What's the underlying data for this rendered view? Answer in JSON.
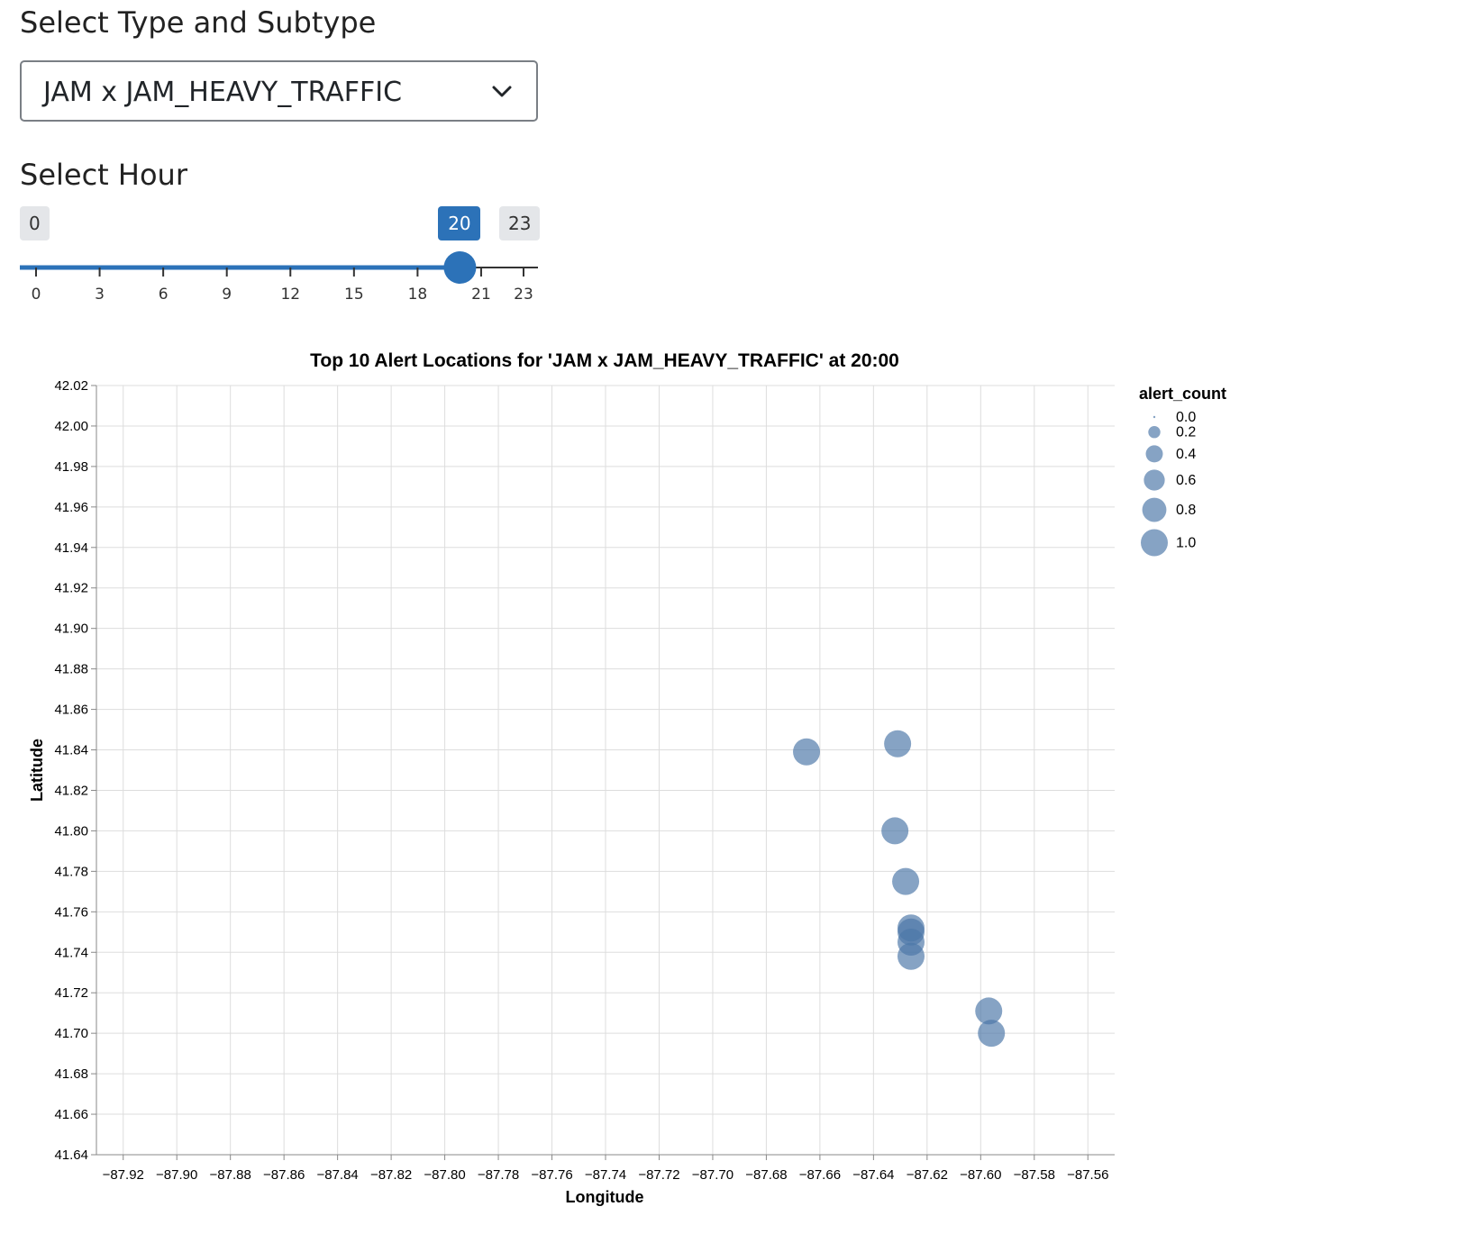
{
  "controls": {
    "type_label": "Select Type and Subtype",
    "type_value": "JAM x JAM_HEAVY_TRAFFIC",
    "hour_label": "Select Hour",
    "hour_min": "0",
    "hour_max": "23",
    "hour_value": "20",
    "hour_ticks": [
      "0",
      "3",
      "6",
      "9",
      "12",
      "15",
      "18",
      "21",
      "23"
    ]
  },
  "colors": {
    "accent": "#2c72b8",
    "point": "#4c78a8",
    "grid": "#dddddd"
  },
  "icons": {
    "dropdown": "chevron-down-icon"
  },
  "chart_data": {
    "type": "scatter",
    "title": "Top 10 Alert Locations for 'JAM x JAM_HEAVY_TRAFFIC' at 20:00",
    "xlabel": "Longitude",
    "ylabel": "Latitude",
    "xlim": [
      -87.93,
      -87.55
    ],
    "ylim": [
      41.64,
      42.02
    ],
    "xticks": [
      -87.92,
      -87.9,
      -87.88,
      -87.86,
      -87.84,
      -87.82,
      -87.8,
      -87.78,
      -87.76,
      -87.74,
      -87.72,
      -87.7,
      -87.68,
      -87.66,
      -87.64,
      -87.62,
      -87.6,
      -87.58,
      -87.56
    ],
    "xtick_labels": [
      "−87.92",
      "−87.90",
      "−87.88",
      "−87.86",
      "−87.84",
      "−87.82",
      "−87.80",
      "−87.78",
      "−87.76",
      "−87.74",
      "−87.72",
      "−87.70",
      "−87.68",
      "−87.66",
      "−87.64",
      "−87.62",
      "−87.60",
      "−87.58",
      "−87.56"
    ],
    "yticks": [
      41.64,
      41.66,
      41.68,
      41.7,
      41.72,
      41.74,
      41.76,
      41.78,
      41.8,
      41.82,
      41.84,
      41.86,
      41.88,
      41.9,
      41.92,
      41.94,
      41.96,
      41.98,
      42.0,
      42.02
    ],
    "ytick_labels": [
      "41.64",
      "41.66",
      "41.68",
      "41.70",
      "41.72",
      "41.74",
      "41.76",
      "41.78",
      "41.80",
      "41.82",
      "41.84",
      "41.86",
      "41.88",
      "41.90",
      "41.92",
      "41.94",
      "41.96",
      "41.98",
      "42.00",
      "42.02"
    ],
    "grid": true,
    "legend_position": "right",
    "size_legend": {
      "title": "alert_count",
      "values": [
        0.0,
        0.2,
        0.4,
        0.6,
        0.8,
        1.0
      ],
      "labels": [
        "0.0",
        "0.2",
        "0.4",
        "0.6",
        "0.8",
        "1.0"
      ]
    },
    "points": [
      {
        "x": -87.665,
        "y": 41.839,
        "alert_count": 1
      },
      {
        "x": -87.631,
        "y": 41.843,
        "alert_count": 1
      },
      {
        "x": -87.632,
        "y": 41.8,
        "alert_count": 1
      },
      {
        "x": -87.628,
        "y": 41.775,
        "alert_count": 1
      },
      {
        "x": -87.626,
        "y": 41.752,
        "alert_count": 1
      },
      {
        "x": -87.626,
        "y": 41.75,
        "alert_count": 1
      },
      {
        "x": -87.626,
        "y": 41.745,
        "alert_count": 1
      },
      {
        "x": -87.626,
        "y": 41.738,
        "alert_count": 1
      },
      {
        "x": -87.597,
        "y": 41.711,
        "alert_count": 1
      },
      {
        "x": -87.596,
        "y": 41.7,
        "alert_count": 1
      }
    ]
  }
}
